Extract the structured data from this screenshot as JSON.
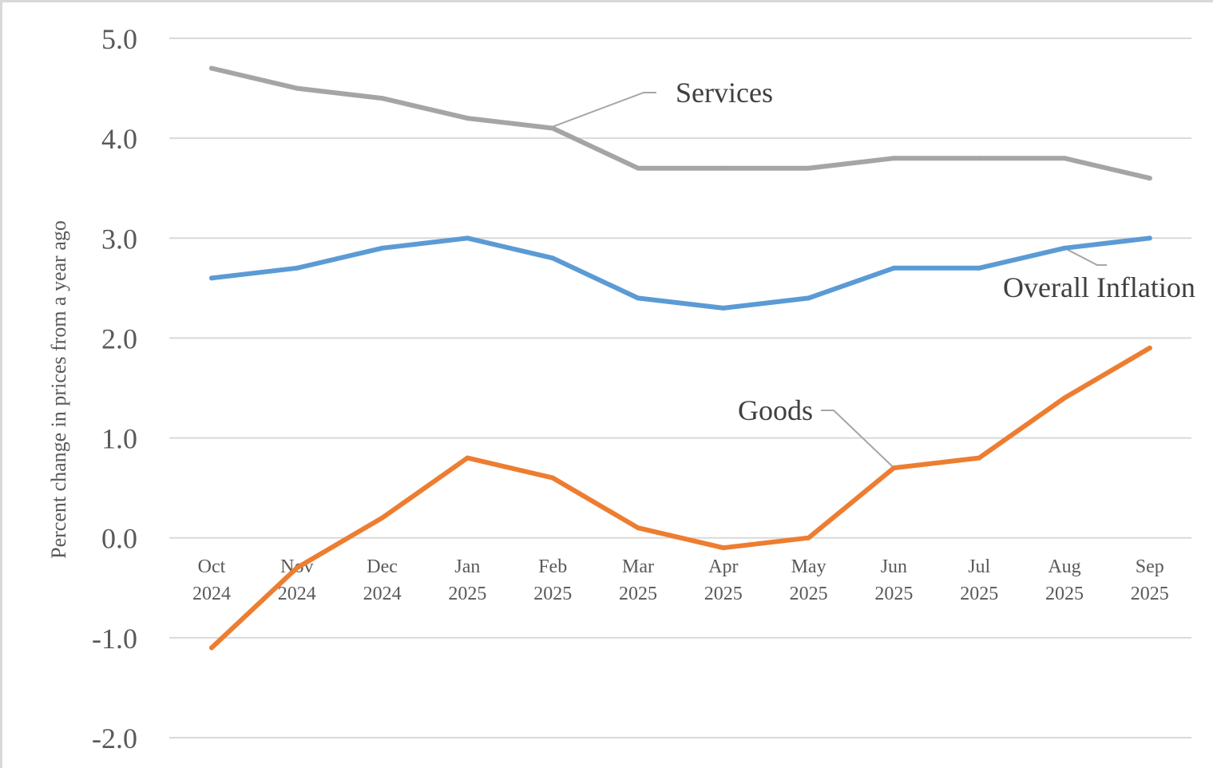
{
  "chart_data": {
    "type": "line",
    "title": "",
    "xlabel": "",
    "ylabel": "Percent change in prices from a year ago",
    "ylim": [
      -2.0,
      5.0
    ],
    "yticks": [
      "5.0",
      "4.0",
      "3.0",
      "2.0",
      "1.0",
      "0.0",
      "-1.0",
      "-2.0"
    ],
    "categories": [
      [
        "Oct",
        "2024"
      ],
      [
        "Nov",
        "2024"
      ],
      [
        "Dec",
        "2024"
      ],
      [
        "Jan",
        "2025"
      ],
      [
        "Feb",
        "2025"
      ],
      [
        "Mar",
        "2025"
      ],
      [
        "Apr",
        "2025"
      ],
      [
        "May",
        "2025"
      ],
      [
        "Jun",
        "2025"
      ],
      [
        "Jul",
        "2025"
      ],
      [
        "Aug",
        "2025"
      ],
      [
        "Sep",
        "2025"
      ]
    ],
    "grid": true,
    "legend": "none (direct labels)",
    "series": [
      {
        "name": "Services",
        "color": "#a5a5a5",
        "values": [
          4.7,
          4.5,
          4.4,
          4.2,
          4.1,
          3.7,
          3.7,
          3.7,
          3.8,
          3.8,
          3.8,
          3.6
        ]
      },
      {
        "name": "Overall Inflation",
        "color": "#5b9bd5",
        "values": [
          2.6,
          2.7,
          2.9,
          3.0,
          2.8,
          2.4,
          2.3,
          2.4,
          2.7,
          2.7,
          2.9,
          3.0
        ]
      },
      {
        "name": "Goods",
        "color": "#ed7d31",
        "values": [
          -1.1,
          -0.3,
          0.2,
          0.8,
          0.6,
          0.1,
          -0.1,
          0.0,
          0.7,
          0.8,
          1.4,
          1.9
        ]
      }
    ]
  }
}
